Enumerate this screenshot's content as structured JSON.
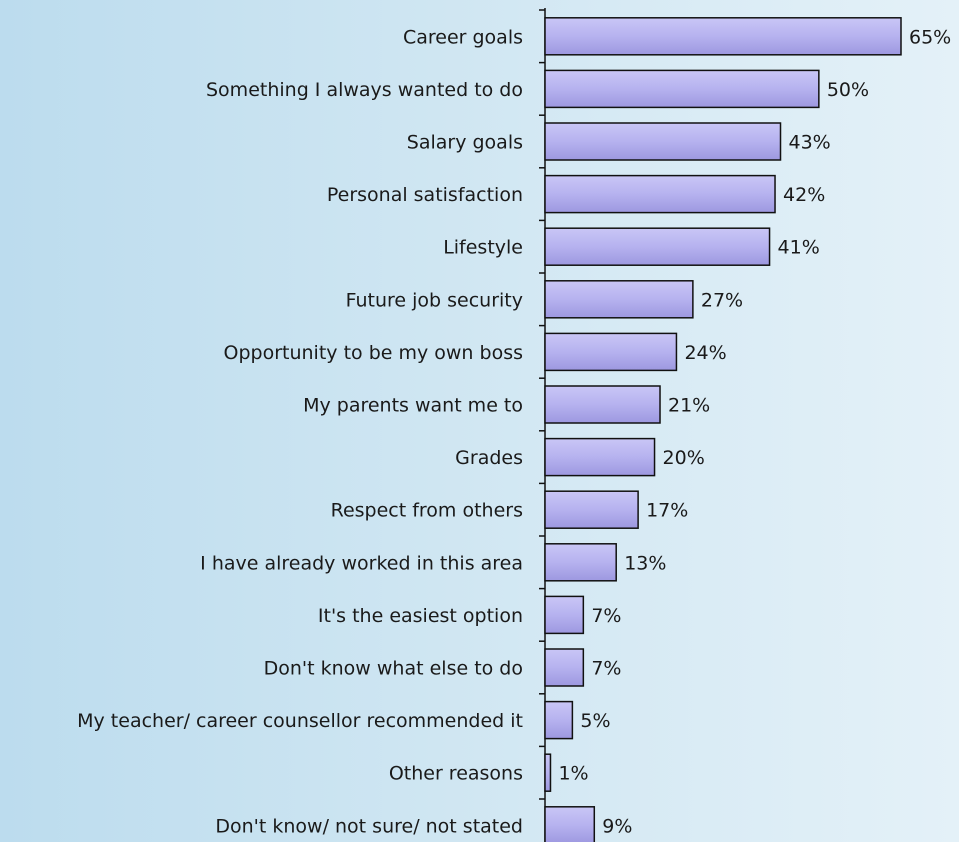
{
  "chart_data": {
    "type": "bar",
    "orientation": "horizontal",
    "categories": [
      "Career goals",
      "Something I always wanted to do",
      "Salary goals",
      "Personal satisfaction",
      "Lifestyle",
      "Future job security",
      "Opportunity to be my own boss",
      "My parents want me to",
      "Grades",
      "Respect from others",
      "I have already worked in this area",
      "It's the easiest option",
      "Don't know what else to do",
      "My teacher/ career counsellor recommended it",
      "Other reasons",
      "Don't know/ not sure/ not stated"
    ],
    "values": [
      65,
      50,
      43,
      42,
      41,
      27,
      24,
      21,
      20,
      17,
      13,
      7,
      7,
      5,
      1,
      9
    ],
    "value_labels": [
      "65%",
      "50%",
      "43%",
      "42%",
      "41%",
      "27%",
      "24%",
      "21%",
      "20%",
      "17%",
      "13%",
      "7%",
      "7%",
      "5%",
      "1%",
      "9%"
    ],
    "xlim": [
      0,
      65
    ],
    "grid": false,
    "legend": "none",
    "bar_color": "#b8b4f0",
    "bar_outline_color": "#111111",
    "background_color": "#cfe6f2"
  }
}
